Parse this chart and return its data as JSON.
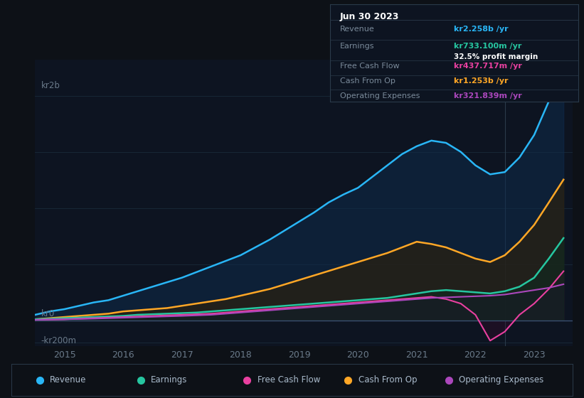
{
  "background_color": "#0d1117",
  "plot_bg_color": "#0d1421",
  "ylabel_top": "kr2b",
  "ylabel_bottom": "-kr200m",
  "ylabel_zero": "kr0",
  "rev_color": "#29b6f6",
  "earn_color": "#26c6a0",
  "fcf_color": "#e940a0",
  "cfop_color": "#ffa726",
  "opex_color": "#ab47bc",
  "rev_fill": "#0e2a4a",
  "earn_fill": "#0e2a20",
  "cfop_fill": "#2a2010",
  "opex_fill": "#1e0e2a",
  "fcf_neg_fill": "#3a0a2a",
  "grid_color": "#1a2a3a",
  "zero_line_color": "#3a5070",
  "vline_color": "#2a3a4a",
  "tick_color": "#6a7a8a",
  "info_box": {
    "title": "Jun 30 2023",
    "bg": "#0d1421",
    "border": "#2a3a4a",
    "rows": [
      {
        "label": "Revenue",
        "value": "kr2.258b /yr",
        "value_color": "#29b6f6",
        "extra": null
      },
      {
        "label": "Earnings",
        "value": "kr733.100m /yr",
        "value_color": "#26c6a0",
        "extra": "32.5% profit margin"
      },
      {
        "label": "Free Cash Flow",
        "value": "kr437.717m /yr",
        "value_color": "#e940a0",
        "extra": null
      },
      {
        "label": "Cash From Op",
        "value": "kr1.253b /yr",
        "value_color": "#ffa726",
        "extra": null
      },
      {
        "label": "Operating Expenses",
        "value": "kr321.839m /yr",
        "value_color": "#ab47bc",
        "extra": null
      }
    ]
  },
  "legend": [
    {
      "label": "Revenue",
      "color": "#29b6f6"
    },
    {
      "label": "Earnings",
      "color": "#26c6a0"
    },
    {
      "label": "Free Cash Flow",
      "color": "#e940a0"
    },
    {
      "label": "Cash From Op",
      "color": "#ffa726"
    },
    {
      "label": "Operating Expenses",
      "color": "#ab47bc"
    }
  ]
}
